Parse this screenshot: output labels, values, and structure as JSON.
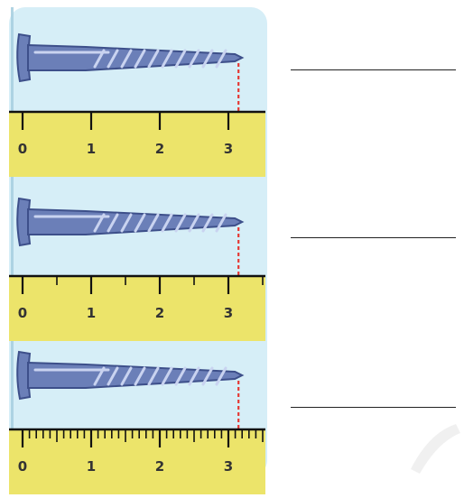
{
  "figure": {
    "panel_color": "#d6eef7",
    "ruler_color": "#ece46a",
    "nail_color": "#6b7fb8",
    "marker_color": "#e53935",
    "rulers": [
      {
        "subdivisions": 1,
        "labels": [
          "0",
          "1",
          "2",
          "3"
        ]
      },
      {
        "subdivisions": 2,
        "labels": [
          "0",
          "1",
          "2",
          "3"
        ]
      },
      {
        "subdivisions": 10,
        "labels": [
          "0",
          "1",
          "2",
          "3"
        ]
      }
    ],
    "answers": [
      "",
      "",
      ""
    ]
  }
}
